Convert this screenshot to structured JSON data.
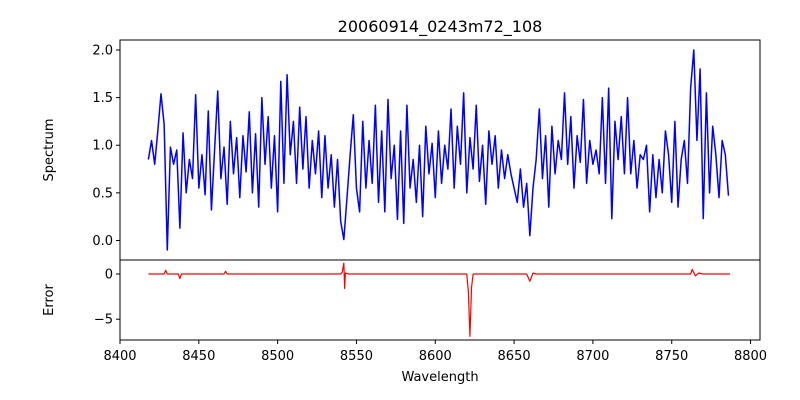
{
  "chart_data": [
    {
      "type": "line",
      "title": "20060914_0243m72_108",
      "xlabel": "",
      "ylabel": "Spectrum",
      "xlim": [
        8400,
        8806
      ],
      "ylim": [
        -0.205,
        2.105
      ],
      "yticks": [
        0.0,
        0.5,
        1.0,
        1.5,
        2.0
      ],
      "ytick_labels": [
        "0.0",
        "0.5",
        "1.0",
        "1.5",
        "2.0"
      ],
      "grid": false,
      "series": [
        {
          "name": "Spectrum",
          "color": "#0000ff",
          "x_start": 8418,
          "x_step": 2,
          "values": [
            0.85,
            1.05,
            0.8,
            1.15,
            1.54,
            1.22,
            -0.1,
            0.98,
            0.8,
            0.95,
            0.13,
            1.13,
            0.5,
            0.85,
            0.65,
            1.53,
            0.55,
            0.9,
            0.48,
            1.36,
            0.32,
            0.95,
            1.57,
            0.65,
            0.98,
            0.38,
            1.25,
            0.7,
            1.08,
            0.45,
            1.1,
            0.72,
            1.35,
            0.5,
            1.12,
            0.35,
            1.5,
            0.8,
            1.3,
            0.55,
            1.1,
            0.3,
            1.67,
            0.6,
            1.74,
            0.9,
            1.25,
            0.6,
            1.4,
            0.75,
            1.3,
            0.55,
            1.05,
            0.7,
            1.15,
            0.45,
            1.1,
            0.55,
            0.9,
            0.35,
            0.85,
            0.2,
            0.01,
            0.45,
            0.9,
            1.32,
            0.55,
            0.3,
            1.25,
            0.55,
            1.05,
            0.6,
            1.42,
            0.4,
            1.15,
            0.3,
            1.48,
            0.65,
            1.0,
            0.22,
            1.15,
            0.18,
            1.42,
            0.55,
            0.85,
            0.4,
            1.0,
            0.25,
            1.2,
            0.7,
            1.02,
            0.45,
            1.15,
            0.6,
            1.0,
            0.75,
            1.38,
            0.55,
            1.2,
            0.8,
            1.55,
            0.5,
            1.08,
            0.75,
            1.42,
            0.62,
            1.0,
            0.38,
            1.15,
            0.8,
            1.1,
            0.55,
            0.95,
            0.65,
            0.9,
            0.7,
            0.55,
            0.4,
            0.75,
            0.35,
            0.6,
            0.05,
            0.55,
            0.85,
            1.38,
            0.65,
            1.1,
            0.35,
            1.2,
            0.7,
            1.05,
            0.85,
            1.55,
            0.8,
            1.3,
            0.55,
            1.1,
            0.82,
            1.48,
            0.6,
            1.05,
            0.8,
            0.95,
            0.7,
            1.5,
            0.6,
            1.6,
            0.23,
            1.25,
            0.85,
            1.3,
            0.7,
            1.5,
            0.7,
            1.05,
            0.55,
            0.9,
            0.85,
            1.0,
            0.3,
            0.9,
            0.45,
            0.85,
            0.5,
            1.15,
            0.9,
            0.4,
            1.25,
            0.35,
            0.85,
            1.05,
            0.6,
            1.6,
            2.0,
            1.05,
            1.8,
            0.23,
            1.55,
            0.5,
            1.2,
            0.9,
            0.45,
            1.05,
            0.9,
            0.47
          ]
        }
      ]
    },
    {
      "type": "line",
      "xlabel": "Wavelength",
      "ylabel": "Error",
      "xlim": [
        8400,
        8806
      ],
      "ylim": [
        -7.3,
        1.55
      ],
      "yticks": [
        0,
        -5
      ],
      "ytick_labels": [
        "0",
        "−5"
      ],
      "xticks": [
        8400,
        8450,
        8500,
        8550,
        8600,
        8650,
        8700,
        8750,
        8800
      ],
      "xtick_labels": [
        "8400",
        "8450",
        "8500",
        "8550",
        "8600",
        "8650",
        "8700",
        "8750",
        "8800"
      ],
      "grid": false,
      "series": [
        {
          "name": "Error",
          "color": "#ff0000",
          "points": [
            [
              8418,
              0
            ],
            [
              8428,
              0
            ],
            [
              8429,
              0.4
            ],
            [
              8430,
              0
            ],
            [
              8437,
              0
            ],
            [
              8438,
              -0.5
            ],
            [
              8439,
              0
            ],
            [
              8466,
              0
            ],
            [
              8467,
              0.3
            ],
            [
              8468,
              0
            ],
            [
              8540,
              0
            ],
            [
              8541,
              0.2
            ],
            [
              8542,
              1.2
            ],
            [
              8542.5,
              -1.6
            ],
            [
              8543,
              0.1
            ],
            [
              8545,
              0
            ],
            [
              8620,
              0
            ],
            [
              8621,
              -2
            ],
            [
              8622,
              -6.9
            ],
            [
              8623,
              -1.5
            ],
            [
              8624,
              0
            ],
            [
              8658,
              0
            ],
            [
              8660,
              -0.8
            ],
            [
              8662,
              0.1
            ],
            [
              8664,
              0
            ],
            [
              8762,
              0
            ],
            [
              8763,
              0.5
            ],
            [
              8765,
              -0.2
            ],
            [
              8767,
              0.1
            ],
            [
              8770,
              0
            ],
            [
              8787,
              0
            ]
          ]
        }
      ]
    }
  ]
}
